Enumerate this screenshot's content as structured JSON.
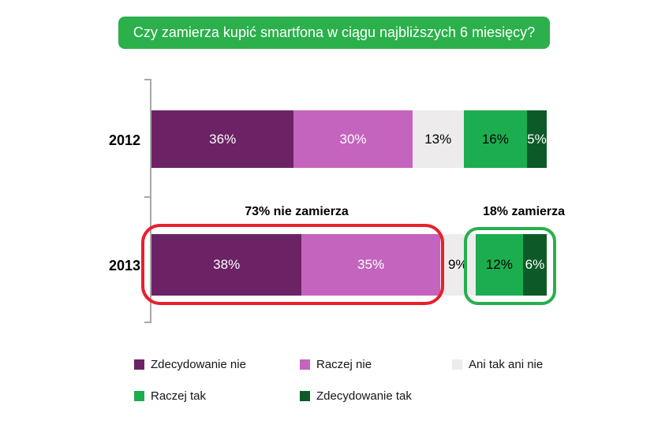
{
  "title": {
    "text": "Czy zamierza kupić smartfona w ciągu najbliższych 6 miesięcy?"
  },
  "colors": {
    "title_bg": "#2BB04B",
    "axis": "#A8A8A8",
    "background": "#FFFFFF"
  },
  "chart_data": {
    "type": "bar",
    "variant": "horizontal-stacked",
    "title": "Czy zamierza kupić smartfona w ciągu najbliższych 6 miesięcy?",
    "unit": "%",
    "categories": [
      "2012",
      "2013"
    ],
    "series": [
      {
        "name": "Zdecydowanie nie",
        "color": "#6C2365",
        "text_color": "#FFFFFF",
        "values": [
          36,
          38
        ]
      },
      {
        "name": "Raczej nie",
        "color": "#C464BE",
        "text_color": "#FFFFFF",
        "values": [
          30,
          35
        ]
      },
      {
        "name": "Ani tak ani nie",
        "color": "#EDEBEC",
        "text_color": "#000000",
        "values": [
          13,
          9
        ]
      },
      {
        "name": "Raczej tak",
        "color": "#1CAD4F",
        "text_color": "#000000",
        "values": [
          16,
          12
        ]
      },
      {
        "name": "Zdecydowanie tak",
        "color": "#0D5A28",
        "text_color": "#FFFFFF",
        "values": [
          5,
          6
        ]
      }
    ],
    "xlim": [
      0,
      100
    ],
    "grid": false,
    "legend_position": "bottom",
    "legend_rows": [
      [
        0,
        1,
        2
      ],
      [
        3,
        4
      ]
    ],
    "annotations": [
      {
        "text": "73% nie zamierza",
        "category": "2013",
        "covers": [
          "Zdecydowanie nie",
          "Raczej nie"
        ],
        "outline_color": "#E8202C"
      },
      {
        "text": "18% zamierza",
        "category": "2013",
        "covers": [
          "Raczej tak",
          "Zdecydowanie tak"
        ],
        "outline_color": "#27AF4C"
      }
    ]
  }
}
